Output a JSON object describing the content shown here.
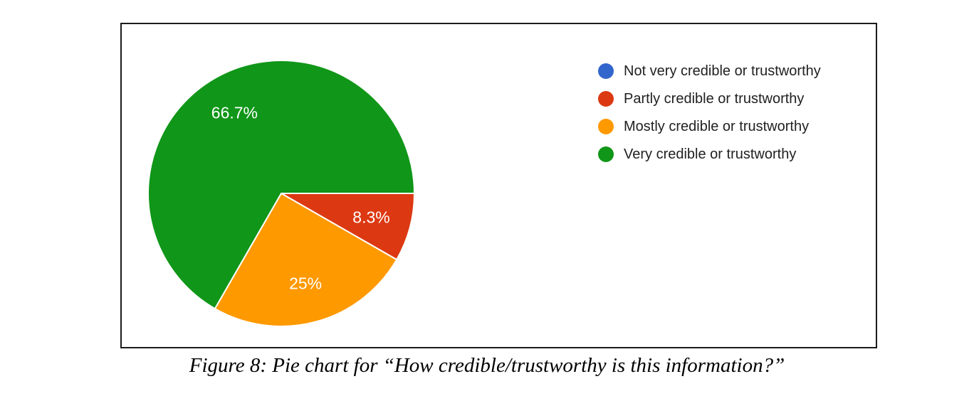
{
  "figure": {
    "caption": "Figure 8: Pie chart for “How credible/trustworthy is this information?”"
  },
  "chart_data": {
    "type": "pie",
    "title": "",
    "question": "How credible/trustworthy is this information?",
    "legend_position": "right",
    "start_angle_deg": 0,
    "direction": "clockwise",
    "label_color": "#ffffff",
    "slice_separator_color": "#ffffff",
    "slices": [
      {
        "label": "Not very credible or trustworthy",
        "value": 0,
        "percent_label": "",
        "color": "#3366CC"
      },
      {
        "label": "Partly credible or trustworthy",
        "value": 8.3,
        "percent_label": "8.3%",
        "color": "#DC3912"
      },
      {
        "label": "Mostly credible or trustworthy",
        "value": 25,
        "percent_label": "25%",
        "color": "#FF9900"
      },
      {
        "label": "Very credible or trustworthy",
        "value": 66.7,
        "percent_label": "66.7%",
        "color": "#109618"
      }
    ]
  }
}
